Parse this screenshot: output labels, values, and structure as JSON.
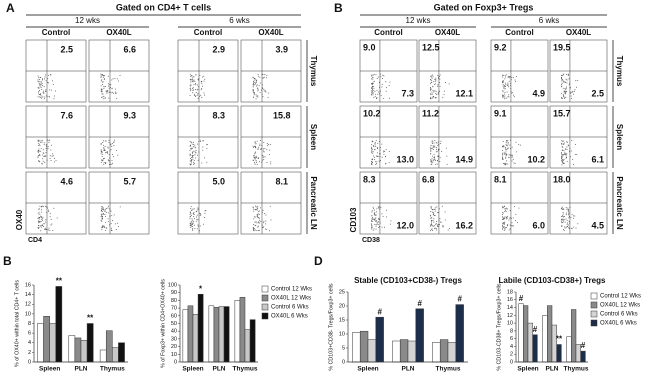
{
  "panels": {
    "A": {
      "label": "A",
      "title": "Gated on CD4+ T cells",
      "groups": [
        "12 wks",
        "6 wks"
      ],
      "columns": [
        "Control",
        "OX40L",
        "Control",
        "OX40L"
      ],
      "rows": [
        "Thymus",
        "Spleen",
        "Pancreatic LN"
      ],
      "values": [
        [
          "2.5",
          "6.6",
          "2.9",
          "3.9"
        ],
        [
          "7.6",
          "9.3",
          "8.3",
          "15.8"
        ],
        [
          "4.6",
          "5.7",
          "5.0",
          "8.1"
        ]
      ],
      "x_axis": "CD4",
      "y_axis": "OX40"
    },
    "B": {
      "label": "B",
      "title": "Gated on Foxp3+ Tregs",
      "groups": [
        "12 wks",
        "6 wks"
      ],
      "columns": [
        "Control",
        "OX40L",
        "Control",
        "OX40L"
      ],
      "rows": [
        "Thymus",
        "Spleen",
        "Pancreatic LN"
      ],
      "upper_left": [
        [
          "9.0",
          "12.5",
          "9.2",
          "19.5"
        ],
        [
          "10.2",
          "11.2",
          "9.1",
          "15.7"
        ],
        [
          "8.3",
          "6.8",
          "8.1",
          "18.0"
        ]
      ],
      "lower_right": [
        [
          "7.3",
          "12.1",
          "4.9",
          "2.5"
        ],
        [
          "13.0",
          "14.9",
          "10.2",
          "6.1"
        ],
        [
          "12.0",
          "16.2",
          "6.0",
          "4.5"
        ]
      ],
      "x_axis": "CD38",
      "y_axis": "CD103"
    },
    "bottom_labels": [
      "B",
      "D"
    ]
  },
  "chart_data": [
    {
      "type": "bar",
      "y_label": "% of OX40+ within total CD4+ T cells",
      "categories": [
        "Spleen",
        "PLN",
        "Thymus"
      ],
      "ylim": [
        0,
        16
      ],
      "yticks": [
        0,
        2,
        4,
        6,
        8,
        10,
        12,
        14,
        16
      ],
      "legend": false,
      "annotations": [
        "**",
        "**"
      ],
      "series": [
        {
          "color": "#ffffff",
          "values": [
            8,
            5.5,
            2.5
          ]
        },
        {
          "color": "#8a8a8a",
          "values": [
            9.5,
            5,
            6.5
          ]
        },
        {
          "color": "#c8c8c8",
          "values": [
            8,
            4.5,
            3
          ]
        },
        {
          "color": "#111111",
          "values": [
            15.7,
            8,
            4
          ]
        }
      ]
    },
    {
      "type": "bar",
      "y_label": "% of Foxp3+ within CD4+OX40+ cells",
      "categories": [
        "Spleen",
        "PLN",
        "Thymus"
      ],
      "ylim": [
        0,
        100
      ],
      "yticks": [
        0,
        10,
        20,
        30,
        40,
        50,
        60,
        70,
        80,
        90,
        100
      ],
      "legend": true,
      "annotations": [
        "*"
      ],
      "series": [
        {
          "name": "Control 12 Wks",
          "color": "#ffffff",
          "values": [
            68,
            73,
            80
          ]
        },
        {
          "name": "OX40L 12 Wks",
          "color": "#8a8a8a",
          "values": [
            73,
            71,
            84
          ]
        },
        {
          "name": "Control 6 Wks",
          "color": "#c8c8c8",
          "values": [
            62,
            72,
            42
          ]
        },
        {
          "name": "OX40L 6 Wks",
          "color": "#111111",
          "values": [
            88,
            72,
            55
          ]
        }
      ]
    },
    {
      "type": "bar",
      "title": "Stable (CD103+CD38-) Tregs",
      "y_label": "% CD103+CD38- Tregs/Foxp3+ cells",
      "categories": [
        "Spleen",
        "PLN",
        "Thymus"
      ],
      "ylim": [
        0,
        25
      ],
      "yticks": [
        0,
        5,
        10,
        15,
        20,
        25
      ],
      "legend": false,
      "annotations": [
        "#",
        "#",
        "#"
      ],
      "series": [
        {
          "color": "#ffffff",
          "values": [
            10.5,
            7.5,
            7
          ]
        },
        {
          "color": "#8a8a8a",
          "values": [
            11,
            8,
            8
          ]
        },
        {
          "color": "#d4d4d4",
          "values": [
            8,
            7.5,
            7
          ]
        },
        {
          "color": "#1c2e4a",
          "values": [
            16,
            19,
            20.5
          ]
        }
      ]
    },
    {
      "type": "bar",
      "title": "Labile (CD103-CD38+) Tregs",
      "y_label": "% CD103-CD38+ Tregs/Foxp3+ cells",
      "categories": [
        "Spleen",
        "PLN",
        "Thymus"
      ],
      "ylim": [
        0,
        18
      ],
      "yticks": [
        0,
        2,
        4,
        6,
        8,
        10,
        12,
        14,
        16,
        18
      ],
      "legend": true,
      "annotations": [
        "#",
        "#",
        "**",
        "#"
      ],
      "series": [
        {
          "name": "Control 12 Wks",
          "color": "#ffffff",
          "values": [
            15,
            12,
            6.5
          ]
        },
        {
          "name": "OX40L 12 Wks",
          "color": "#8a8a8a",
          "values": [
            14.5,
            14.5,
            13.5
          ]
        },
        {
          "name": "Control 6 Wks",
          "color": "#d4d4d4",
          "values": [
            10,
            9.5,
            4.5
          ]
        },
        {
          "name": "OX40L 6 Wks",
          "color": "#1c2e4a",
          "values": [
            7,
            4.5,
            2.8
          ]
        }
      ]
    }
  ]
}
